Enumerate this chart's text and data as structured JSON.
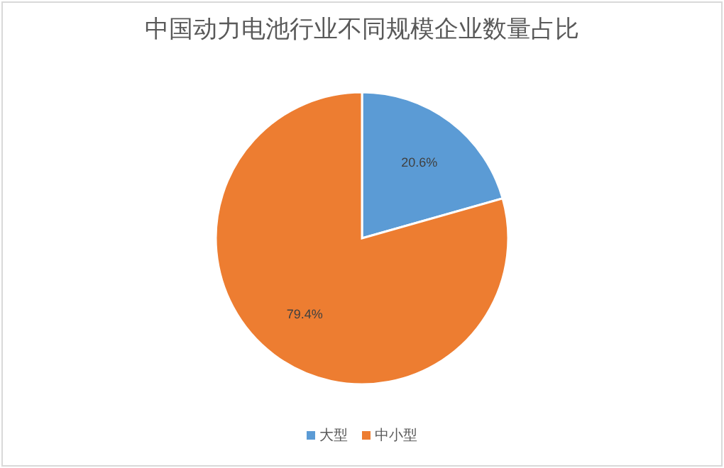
{
  "chart_data": {
    "type": "pie",
    "title": "中国动力电池行业不同规模企业数量占比",
    "categories": [
      "大型",
      "中小型"
    ],
    "values": [
      20.6,
      79.4
    ],
    "colors": [
      "#5b9bd5",
      "#ed7d31"
    ],
    "value_labels": [
      "20.6%",
      "79.4%"
    ],
    "legend": "bottom"
  }
}
